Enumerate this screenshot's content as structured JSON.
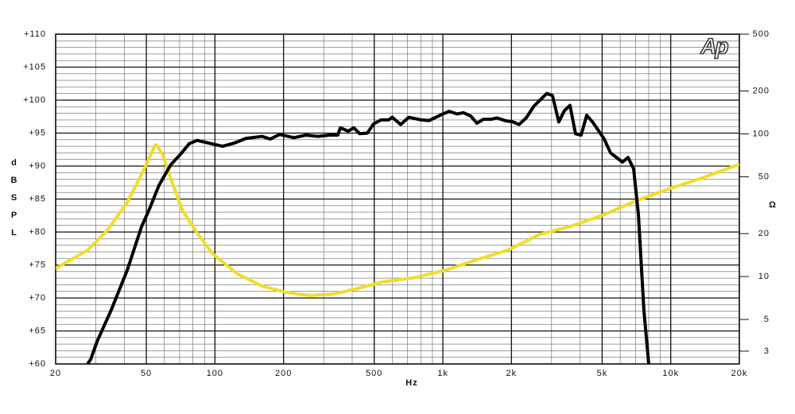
{
  "chart_data": {
    "type": "line",
    "logo": "Ap",
    "x_label": "Hz",
    "y_label": "dB SPL",
    "y2_label": "Ω",
    "xscale": "log",
    "y2scale": "log",
    "grid": true,
    "xlim": [
      20,
      20000
    ],
    "xticks": [
      20,
      50,
      100,
      200,
      500,
      {
        "value": 1000,
        "label": "1k"
      },
      {
        "value": 2000,
        "label": "2k"
      },
      {
        "value": 5000,
        "label": "5k"
      },
      {
        "value": 10000,
        "label": "10k"
      },
      {
        "value": 20000,
        "label": "20k"
      }
    ],
    "ylim": [
      60,
      110
    ],
    "yticks": [
      {
        "value": 60,
        "label": "+60"
      },
      {
        "value": 65,
        "label": "+65"
      },
      {
        "value": 70,
        "label": "+70"
      },
      {
        "value": 75,
        "label": "+75"
      },
      {
        "value": 80,
        "label": "+80"
      },
      {
        "value": 85,
        "label": "+85"
      },
      {
        "value": 90,
        "label": "+90"
      },
      {
        "value": 95,
        "label": "+95"
      },
      {
        "value": 100,
        "label": "+100"
      },
      {
        "value": 105,
        "label": "+105"
      },
      {
        "value": 110,
        "label": "+110"
      }
    ],
    "y2lim": [
      2.44,
      500
    ],
    "y2ticks": [
      3,
      5,
      10,
      20,
      50,
      100,
      200,
      500
    ],
    "series": [
      {
        "color": "#000000",
        "axis": "y",
        "x": [
          27.6,
          28.5,
          30.4,
          35.1,
          41.2,
          47.6,
          51.6,
          56.8,
          64,
          71.1,
          77.1,
          83.5,
          93.5,
          108,
          122,
          137,
          161,
          175,
          192,
          222,
          251,
          283,
          319,
          346,
          355,
          384,
          407,
          432,
          466,
          497,
          536,
          578,
          600,
          653,
          709,
          804,
          871,
          984,
          1066,
          1154,
          1231,
          1324,
          1412,
          1506,
          1630,
          1725,
          1870,
          2028,
          2159,
          2322,
          2512,
          2857,
          3026,
          3228,
          3414,
          3613,
          3821,
          4045,
          4277,
          4560,
          5106,
          5446,
          6141,
          6490,
          6873,
          7212,
          7625,
          8003
        ],
        "values": [
          60,
          60.7,
          63.4,
          68.2,
          74.2,
          80.8,
          83.5,
          87.1,
          90.2,
          91.9,
          93.4,
          93.9,
          93.5,
          93,
          93.5,
          94.2,
          94.5,
          94.1,
          94.8,
          94.3,
          94.7,
          94.5,
          94.7,
          94.7,
          95.8,
          95.3,
          95.8,
          94.9,
          95,
          96.4,
          97,
          97,
          97.4,
          96.3,
          97.4,
          97,
          96.9,
          97.8,
          98.3,
          97.9,
          98.1,
          97.6,
          96.5,
          97.1,
          97.1,
          97.3,
          96.9,
          96.7,
          96.3,
          97.3,
          99.1,
          101,
          100.7,
          96.7,
          98.4,
          99.2,
          94.9,
          94.7,
          97.7,
          96.6,
          94.1,
          92,
          90.6,
          91.3,
          89.6,
          82.7,
          68.2,
          60
        ]
      },
      {
        "color": "#f2dc2a",
        "axis": "y2",
        "x": [
          20,
          27.6,
          33.7,
          41.2,
          48.5,
          54.6,
          55.4,
          59.1,
          64,
          72.1,
          84.2,
          98.3,
          126,
          161,
          205,
          261,
          333,
          424,
          539,
          737,
          1028,
          1406,
          1922,
          2670,
          3647,
          5106,
          7038,
          9725,
          13440,
          20000
        ],
        "values": [
          11.4,
          15.3,
          21.1,
          33,
          55.1,
          83,
          84,
          71.3,
          48.5,
          29,
          19.8,
          14.3,
          10.4,
          8.6,
          7.75,
          7.36,
          7.55,
          8.26,
          9.16,
          9.77,
          11.1,
          13.1,
          15.3,
          19.8,
          22.5,
          27.2,
          33.9,
          41,
          48.5,
          61.1
        ]
      }
    ]
  }
}
